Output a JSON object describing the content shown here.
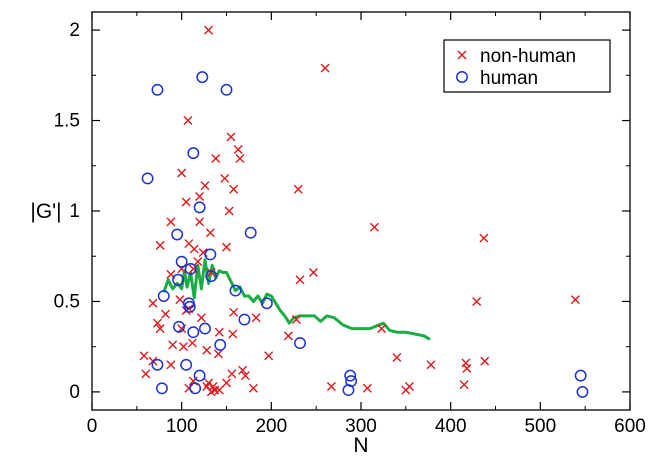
{
  "chart_data": {
    "type": "scatter",
    "xlabel": "N",
    "ylabel": "|G'|",
    "xlim": [
      0,
      600
    ],
    "ylim": [
      -0.1,
      2.1
    ],
    "xticks": [
      0,
      100,
      200,
      300,
      400,
      500,
      600
    ],
    "yticks": [
      0,
      0.5,
      1,
      1.5,
      2
    ],
    "xtick_labels": [
      "0",
      "100",
      "200",
      "300",
      "400",
      "500",
      "600"
    ],
    "ytick_labels": [
      "0",
      "0.5",
      "1",
      "1.5",
      "2"
    ],
    "grid": false,
    "legend_position": "top-right",
    "series": [
      {
        "name": "non-human",
        "marker": "x",
        "color": "#e0181b",
        "points": [
          [
            130,
            2.0
          ],
          [
            260,
            1.79
          ],
          [
            107,
            1.5
          ],
          [
            155,
            1.41
          ],
          [
            163,
            1.34
          ],
          [
            165,
            1.29
          ],
          [
            138,
            1.29
          ],
          [
            100,
            1.21
          ],
          [
            148,
            1.18
          ],
          [
            126,
            1.14
          ],
          [
            158,
            1.12
          ],
          [
            230,
            1.12
          ],
          [
            120,
            1.08
          ],
          [
            105,
            1.05
          ],
          [
            153,
            1.0
          ],
          [
            88,
            0.94
          ],
          [
            120,
            0.94
          ],
          [
            315,
            0.91
          ],
          [
            132,
            0.88
          ],
          [
            437,
            0.85
          ],
          [
            108,
            0.82
          ],
          [
            150,
            0.8
          ],
          [
            76,
            0.81
          ],
          [
            114,
            0.79
          ],
          [
            124,
            0.77
          ],
          [
            118,
            0.72
          ],
          [
            100,
            0.68
          ],
          [
            113,
            0.68
          ],
          [
            88,
            0.65
          ],
          [
            133,
            0.66
          ],
          [
            247,
            0.66
          ],
          [
            232,
            0.62
          ],
          [
            68,
            0.49
          ],
          [
            98,
            0.51
          ],
          [
            108,
            0.46
          ],
          [
            105,
            0.45
          ],
          [
            82,
            0.43
          ],
          [
            158,
            0.44
          ],
          [
            228,
            0.4
          ],
          [
            73,
            0.38
          ],
          [
            122,
            0.41
          ],
          [
            183,
            0.41
          ],
          [
            100,
            0.35
          ],
          [
            76,
            0.35
          ],
          [
            142,
            0.33
          ],
          [
            157,
            0.32
          ],
          [
            219,
            0.31
          ],
          [
            90,
            0.26
          ],
          [
            102,
            0.25
          ],
          [
            112,
            0.27
          ],
          [
            128,
            0.23
          ],
          [
            141,
            0.21
          ],
          [
            58,
            0.2
          ],
          [
            197,
            0.2
          ],
          [
            68,
            0.17
          ],
          [
            88,
            0.15
          ],
          [
            340,
            0.19
          ],
          [
            417,
            0.16
          ],
          [
            438,
            0.17
          ],
          [
            418,
            0.13
          ],
          [
            60,
            0.1
          ],
          [
            156,
            0.1
          ],
          [
            171,
            0.09
          ],
          [
            168,
            0.12
          ],
          [
            378,
            0.15
          ],
          [
            113,
            0.06
          ],
          [
            130,
            0.05
          ],
          [
            150,
            0.05
          ],
          [
            128,
            0.03
          ],
          [
            135,
            0.03
          ],
          [
            142,
            0.01
          ],
          [
            180,
            0.02
          ],
          [
            108,
            0.02
          ],
          [
            267,
            0.03
          ],
          [
            307,
            0.02
          ],
          [
            354,
            0.03
          ],
          [
            350,
            0.01
          ],
          [
            415,
            0.04
          ],
          [
            429,
            0.5
          ],
          [
            539,
            0.51
          ],
          [
            323,
            0.35
          ],
          [
            133,
            0.0
          ],
          [
            137,
            0.01
          ]
        ]
      },
      {
        "name": "human",
        "marker": "o",
        "color": "#1d32d0",
        "points": [
          [
            73,
            1.67
          ],
          [
            123,
            1.74
          ],
          [
            150,
            1.67
          ],
          [
            62,
            1.18
          ],
          [
            113,
            1.32
          ],
          [
            120,
            1.02
          ],
          [
            95,
            0.87
          ],
          [
            177,
            0.88
          ],
          [
            132,
            0.76
          ],
          [
            100,
            0.72
          ],
          [
            110,
            0.68
          ],
          [
            96,
            0.62
          ],
          [
            133,
            0.64
          ],
          [
            80,
            0.53
          ],
          [
            160,
            0.56
          ],
          [
            108,
            0.49
          ],
          [
            109,
            0.47
          ],
          [
            195,
            0.49
          ],
          [
            170,
            0.4
          ],
          [
            97,
            0.36
          ],
          [
            126,
            0.35
          ],
          [
            113,
            0.33
          ],
          [
            232,
            0.27
          ],
          [
            143,
            0.26
          ],
          [
            105,
            0.15
          ],
          [
            73,
            0.15
          ],
          [
            120,
            0.09
          ],
          [
            288,
            0.09
          ],
          [
            545,
            0.09
          ],
          [
            78,
            0.02
          ],
          [
            115,
            0.02
          ],
          [
            286,
            0.01
          ],
          [
            289,
            0.06
          ],
          [
            547,
            0.0
          ]
        ]
      },
      {
        "name": "",
        "type": "line",
        "color": "#18ad45",
        "points": [
          [
            80,
            0.55
          ],
          [
            85,
            0.62
          ],
          [
            90,
            0.57
          ],
          [
            95,
            0.6
          ],
          [
            100,
            0.57
          ],
          [
            103,
            0.67
          ],
          [
            106,
            0.58
          ],
          [
            110,
            0.66
          ],
          [
            114,
            0.52
          ],
          [
            118,
            0.7
          ],
          [
            122,
            0.57
          ],
          [
            126,
            0.73
          ],
          [
            130,
            0.6
          ],
          [
            134,
            0.7
          ],
          [
            138,
            0.63
          ],
          [
            142,
            0.67
          ],
          [
            146,
            0.66
          ],
          [
            150,
            0.66
          ],
          [
            155,
            0.61
          ],
          [
            160,
            0.56
          ],
          [
            165,
            0.58
          ],
          [
            170,
            0.53
          ],
          [
            175,
            0.53
          ],
          [
            180,
            0.5
          ],
          [
            185,
            0.53
          ],
          [
            190,
            0.49
          ],
          [
            195,
            0.54
          ],
          [
            200,
            0.53
          ],
          [
            205,
            0.49
          ],
          [
            210,
            0.45
          ],
          [
            215,
            0.42
          ],
          [
            220,
            0.38
          ],
          [
            225,
            0.41
          ],
          [
            232,
            0.42
          ],
          [
            240,
            0.42
          ],
          [
            248,
            0.42
          ],
          [
            255,
            0.39
          ],
          [
            262,
            0.42
          ],
          [
            270,
            0.41
          ],
          [
            280,
            0.37
          ],
          [
            290,
            0.35
          ],
          [
            300,
            0.35
          ],
          [
            310,
            0.35
          ],
          [
            320,
            0.37
          ],
          [
            325,
            0.38
          ],
          [
            332,
            0.34
          ],
          [
            340,
            0.33
          ],
          [
            350,
            0.33
          ],
          [
            360,
            0.32
          ],
          [
            370,
            0.31
          ],
          [
            377,
            0.29
          ]
        ]
      }
    ],
    "legend": [
      {
        "label": "non-human",
        "marker": "x",
        "color": "#e0181b"
      },
      {
        "label": "human",
        "marker": "o",
        "color": "#1d32d0"
      }
    ]
  }
}
